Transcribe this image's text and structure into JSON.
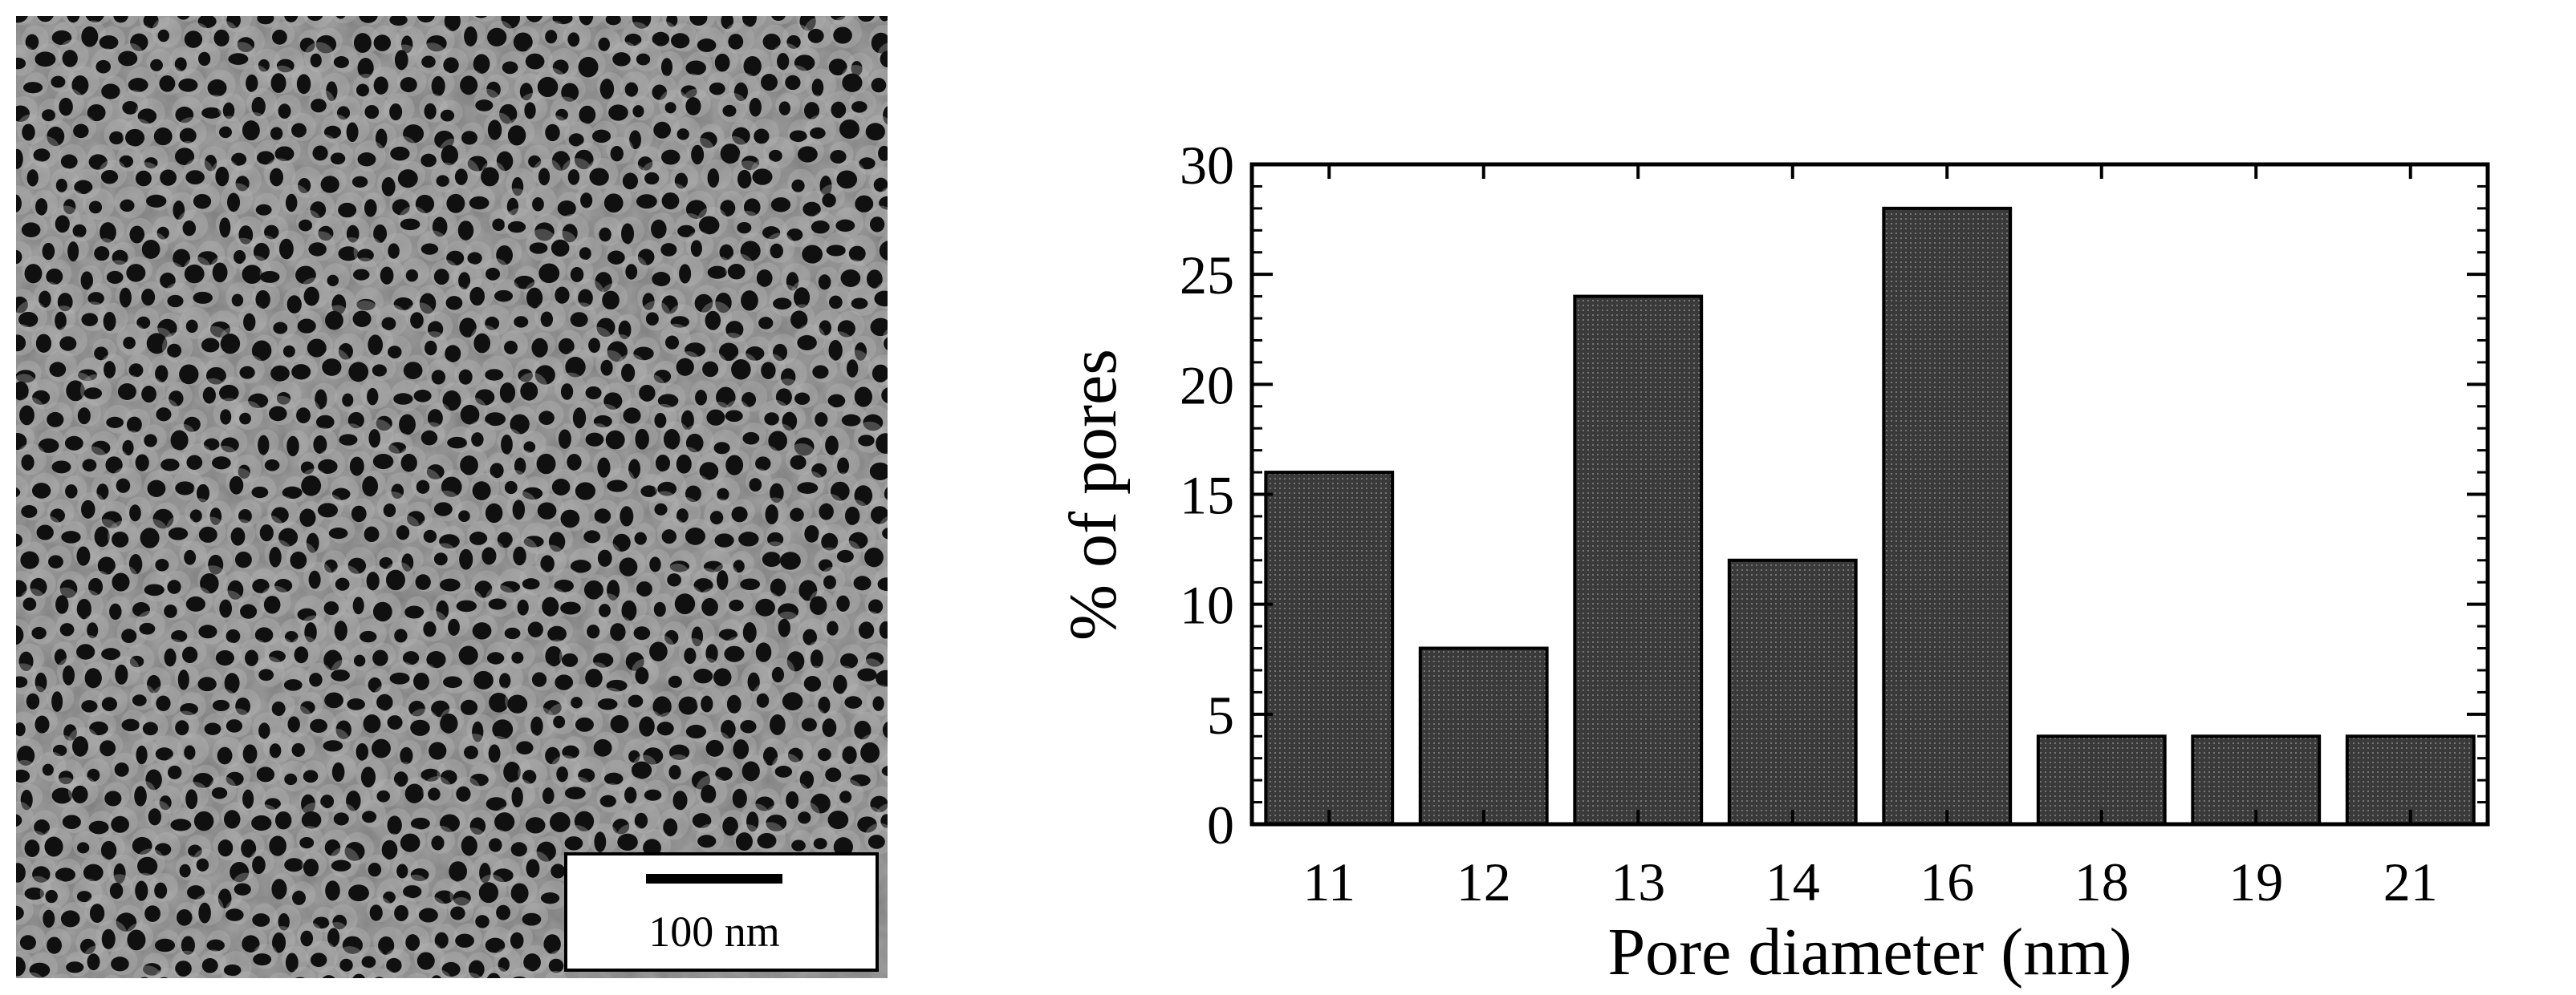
{
  "micrograph": {
    "scale_bar_label": "100 nm"
  },
  "chart_data": {
    "type": "bar",
    "categories": [
      "11",
      "12",
      "13",
      "14",
      "16",
      "18",
      "19",
      "21"
    ],
    "values": [
      16,
      8,
      24,
      12,
      28,
      4,
      4,
      4
    ],
    "title": "",
    "xlabel": "Pore diameter (nm)",
    "ylabel": "% of pores",
    "ylim": [
      0,
      30
    ],
    "yticks": [
      0,
      5,
      10,
      15,
      20,
      25,
      30
    ],
    "grid": false,
    "bar_color": "#3a3a3a"
  }
}
